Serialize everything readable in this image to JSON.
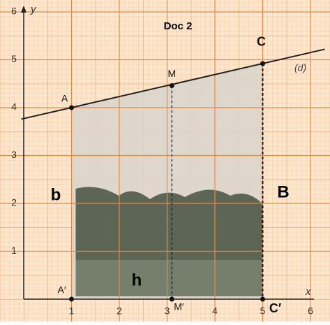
{
  "chart_data": {
    "type": "line",
    "title": "Doc 2",
    "x_label": "x",
    "y_label": "y",
    "xlim": [
      0,
      6
    ],
    "ylim": [
      0,
      6
    ],
    "xticks": [
      1,
      2,
      3,
      4,
      5,
      6
    ],
    "yticks": [
      1,
      2,
      3,
      4,
      5,
      6
    ],
    "grid": true,
    "series": [
      {
        "name": "(d)",
        "color": "#222222",
        "x": [
          -0.05,
          6.3
        ],
        "values": [
          3.76,
          5.22
        ]
      }
    ],
    "points": [
      {
        "label": "A",
        "x": 1,
        "y": 4
      },
      {
        "label": "M",
        "x": 3.1,
        "y": 4.46
      },
      {
        "label": "C",
        "x": 5,
        "y": 4.92
      },
      {
        "label": "A′",
        "x": 1,
        "y": 0
      },
      {
        "label": "M′",
        "x": 3.1,
        "y": 0
      },
      {
        "label": "C′",
        "x": 5,
        "y": 0
      }
    ],
    "region_labels": [
      "b",
      "B",
      "h"
    ]
  }
}
